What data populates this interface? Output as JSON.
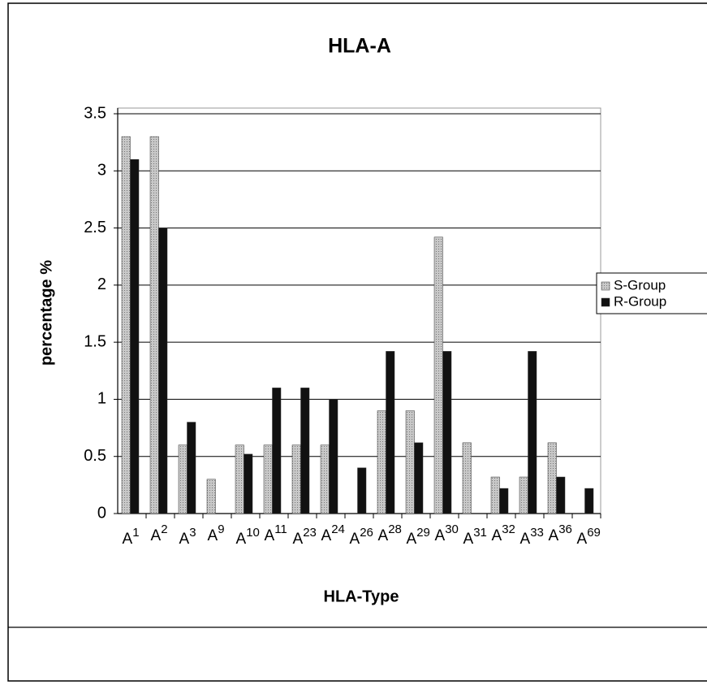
{
  "chart_data": {
    "type": "bar",
    "title": "HLA-A",
    "x_label": "HLA-Type",
    "y_label": "percentage %",
    "categories": [
      "A1",
      "A2",
      "A3",
      "A9",
      "A10",
      "A11",
      "A23",
      "A24",
      "A26",
      "A28",
      "A29",
      "A30",
      "A31",
      "A32",
      "A33",
      "A36",
      "A69"
    ],
    "series": [
      {
        "name": "S-Group",
        "color": "#b8b8b8",
        "values": [
          3.3,
          3.3,
          0.6,
          0.3,
          0.6,
          0.6,
          0.6,
          0.6,
          0,
          0.9,
          0.9,
          2.42,
          0.62,
          0.32,
          0.32,
          0.62,
          0
        ]
      },
      {
        "name": "R-Group",
        "color": "#111111",
        "values": [
          3.1,
          2.5,
          0.8,
          0,
          0.52,
          1.1,
          1.1,
          1.0,
          0.4,
          1.42,
          0.62,
          1.42,
          0,
          0.22,
          1.42,
          0.32,
          0.22
        ]
      }
    ],
    "ylim": [
      0,
      3.5
    ],
    "yticks": [
      0,
      0.5,
      1,
      1.5,
      2,
      2.5,
      3,
      3.5
    ],
    "grid": true,
    "legend": "right"
  }
}
